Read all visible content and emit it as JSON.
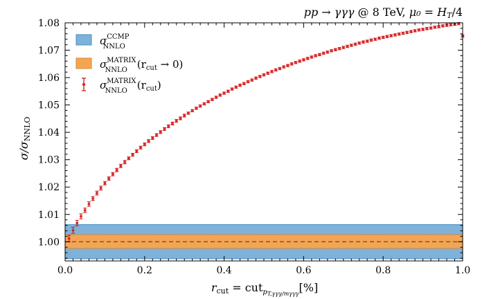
{
  "chart_data": {
    "type": "scatter",
    "title": "pp → γγγ @ 8 TeV, μ₀ = H_T/4",
    "title_parts": {
      "process": "pp → γγγ",
      "energy": "@ 8 TeV,",
      "scale": "μ₀ = H",
      "scale_sub": "T",
      "scale_tail": "/4"
    },
    "xlabel": "r_cut = cut_{p_T,γγγ/m_γγγ} [%]",
    "xlabel_parts": {
      "r": "r",
      "r_sub": "cut",
      "eq": " = cut",
      "cut_sub": "p",
      "cut_sub2": "T,γγγ/mγγγ",
      "unit": "[%]"
    },
    "ylabel": "σ/σ_NNLO",
    "ylabel_parts": {
      "main": "σ/σ",
      "sub": "NNLO"
    },
    "xlim": [
      0.0,
      1.0
    ],
    "ylim": [
      0.993,
      1.08
    ],
    "xticks": [
      "0.0",
      "0.2",
      "0.4",
      "0.6",
      "0.8",
      "1.0"
    ],
    "yticks": [
      "1.00",
      "1.01",
      "1.02",
      "1.03",
      "1.04",
      "1.05",
      "1.06",
      "1.07",
      "1.08"
    ],
    "grid": false,
    "legend_position": "top-left",
    "bands": [
      {
        "name": "σ^CCMP_NNLO",
        "low": 0.9938,
        "high": 1.0063,
        "color": "#7fb1d9",
        "edge": "#4a90c7"
      },
      {
        "name": "σ^MATRIX_NNLO(r_cut → 0)",
        "low": 0.9976,
        "high": 1.0026,
        "color": "#f5a552",
        "edge": "#d18a3a"
      }
    ],
    "reference_line": {
      "y": 1.0,
      "style": "dashed",
      "color": "#555555"
    },
    "points_series": {
      "name": "σ^MATRIX_NNLO(r_cut)",
      "color": "#d62728",
      "x": [
        0.01,
        0.02,
        0.03,
        0.04,
        0.05,
        0.06,
        0.07,
        0.08,
        0.09,
        0.1,
        0.11,
        0.12,
        0.13,
        0.14,
        0.15,
        0.16,
        0.17,
        0.18,
        0.19,
        0.2,
        0.21,
        0.22,
        0.23,
        0.24,
        0.25,
        0.26,
        0.27,
        0.28,
        0.29,
        0.3,
        0.31,
        0.32,
        0.33,
        0.34,
        0.35,
        0.36,
        0.37,
        0.38,
        0.39,
        0.4,
        0.41,
        0.42,
        0.43,
        0.44,
        0.45,
        0.46,
        0.47,
        0.48,
        0.49,
        0.5,
        0.51,
        0.52,
        0.53,
        0.54,
        0.55,
        0.56,
        0.57,
        0.58,
        0.59,
        0.6,
        0.61,
        0.62,
        0.63,
        0.64,
        0.65,
        0.66,
        0.67,
        0.68,
        0.69,
        0.7,
        0.71,
        0.72,
        0.73,
        0.74,
        0.75,
        0.76,
        0.77,
        0.78,
        0.79,
        0.8,
        0.81,
        0.82,
        0.83,
        0.84,
        0.85,
        0.86,
        0.87,
        0.88,
        0.89,
        0.9,
        0.91,
        0.92,
        0.93,
        0.94,
        0.95,
        0.96,
        0.97,
        0.98,
        0.99,
        1.0
      ],
      "y": [
        1.0012,
        1.0042,
        1.0068,
        1.0093,
        1.0115,
        1.0138,
        1.0158,
        1.0178,
        1.0196,
        1.0214,
        1.0231,
        1.0247,
        1.0262,
        1.0277,
        1.0291,
        1.0305,
        1.0318,
        1.0331,
        1.0344,
        1.0356,
        1.0368,
        1.0379,
        1.039,
        1.0401,
        1.0412,
        1.0422,
        1.0432,
        1.0442,
        1.0451,
        1.0461,
        1.047,
        1.0479,
        1.0488,
        1.0496,
        1.0504,
        1.0512,
        1.052,
        1.0528,
        1.0536,
        1.0543,
        1.055,
        1.0558,
        1.0565,
        1.0572,
        1.0578,
        1.0585,
        1.0591,
        1.0598,
        1.0604,
        1.061,
        1.0616,
        1.0622,
        1.0628,
        1.0633,
        1.0639,
        1.0644,
        1.065,
        1.0655,
        1.066,
        1.0665,
        1.067,
        1.0675,
        1.068,
        1.0684,
        1.0689,
        1.0693,
        1.0698,
        1.0702,
        1.0706,
        1.071,
        1.0714,
        1.0718,
        1.0722,
        1.0726,
        1.073,
        1.0733,
        1.0737,
        1.074,
        1.0744,
        1.0747,
        1.075,
        1.0753,
        1.0756,
        1.0759,
        1.0762,
        1.0765,
        1.0768,
        1.0771,
        1.0774,
        1.0776,
        1.0779,
        1.0781,
        1.0784,
        1.0786,
        1.0789,
        1.0791,
        1.0793,
        1.0795,
        1.0797,
        1.0752
      ],
      "yerr": [
        0.0012,
        0.0011,
        0.001,
        0.0009,
        0.0008,
        0.0008,
        0.0007,
        0.0007,
        0.0007,
        0.0006,
        0.0006,
        0.0006,
        0.0006,
        0.0006,
        0.0006,
        0.0005,
        0.0005,
        0.0005,
        0.0005,
        0.0005,
        0.0005,
        0.0005,
        0.0005,
        0.0005,
        0.0005,
        0.0005,
        0.0005,
        0.0005,
        0.0005,
        0.0005,
        0.0004,
        0.0004,
        0.0004,
        0.0004,
        0.0004,
        0.0004,
        0.0004,
        0.0004,
        0.0004,
        0.0004,
        0.0004,
        0.0004,
        0.0004,
        0.0004,
        0.0004,
        0.0004,
        0.0004,
        0.0004,
        0.0004,
        0.0004,
        0.0004,
        0.0004,
        0.0004,
        0.0004,
        0.0004,
        0.0004,
        0.0004,
        0.0004,
        0.0004,
        0.0004,
        0.0004,
        0.0004,
        0.0004,
        0.0004,
        0.0004,
        0.0004,
        0.0004,
        0.0004,
        0.0004,
        0.0004,
        0.0004,
        0.0004,
        0.0004,
        0.0004,
        0.0004,
        0.0004,
        0.0004,
        0.0004,
        0.0004,
        0.0004,
        0.0004,
        0.0004,
        0.0004,
        0.0004,
        0.0004,
        0.0004,
        0.0004,
        0.0004,
        0.0004,
        0.0004,
        0.0004,
        0.0004,
        0.0004,
        0.0004,
        0.0004,
        0.0004,
        0.0004,
        0.0004,
        0.0004,
        0.0004
      ]
    },
    "legend": [
      {
        "label_main": "σ",
        "label_sup": "CCMP",
        "label_sub": "NNLO",
        "label_tail": ""
      },
      {
        "label_main": "σ",
        "label_sup": "MATRIX",
        "label_sub": "NNLO",
        "label_tail": "(r",
        "label_tail_sub": "cut",
        "label_tail_end": " → 0)"
      },
      {
        "label_main": "σ",
        "label_sup": "MATRIX",
        "label_sub": "NNLO",
        "label_tail": "(r",
        "label_tail_sub": "cut",
        "label_tail_end": ")"
      }
    ]
  }
}
